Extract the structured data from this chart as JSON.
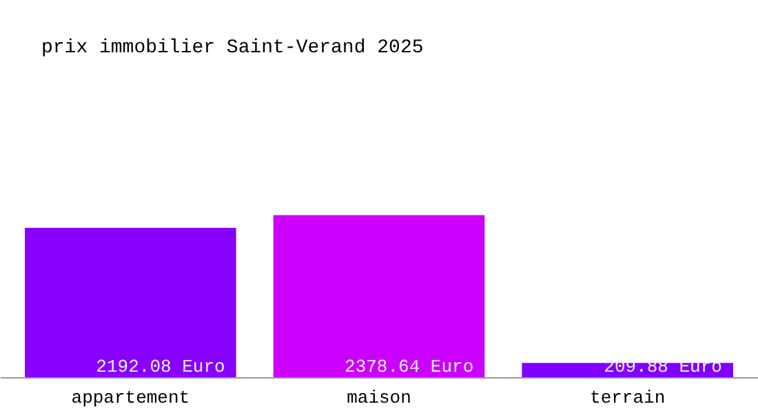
{
  "chart_data": {
    "type": "bar",
    "title": "prix immobilier Saint-Verand 2025",
    "categories": [
      "appartement",
      "maison",
      "terrain"
    ],
    "values": [
      2192.08,
      2378.64,
      209.88
    ],
    "colors": [
      "#8800ff",
      "#cc00ff",
      "#8000ff"
    ],
    "value_labels": [
      "2192.08 Euro",
      "2378.64 Euro",
      "209.88 Euro"
    ]
  }
}
